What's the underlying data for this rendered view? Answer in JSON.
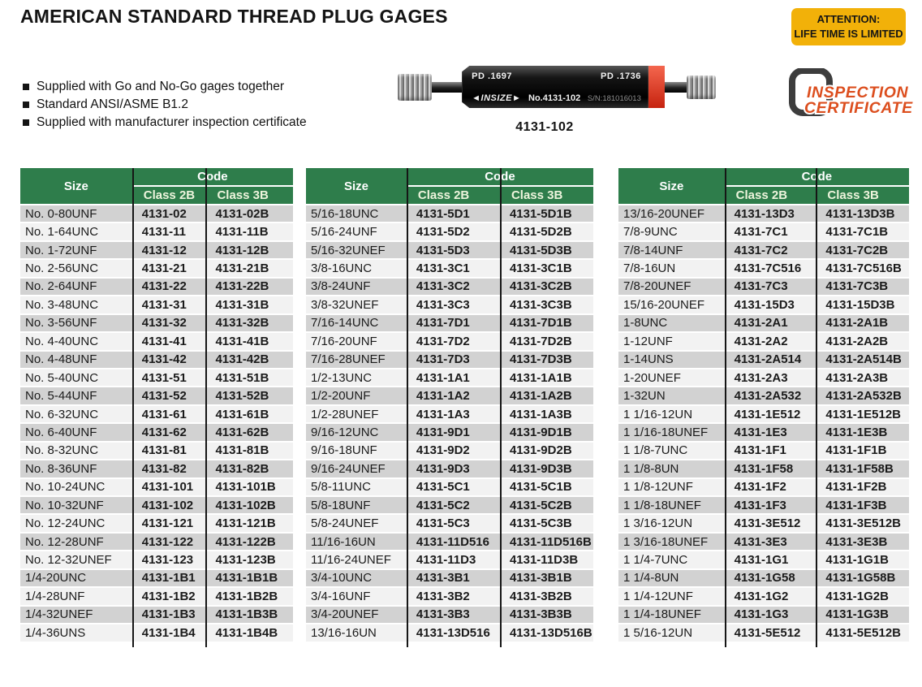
{
  "header": {
    "title": "AMERICAN STANDARD THREAD PLUG GAGES",
    "attention_line1": "ATTENTION:",
    "attention_line2": "LIFE TIME IS LIMITED"
  },
  "features": [
    "Supplied with Go and No-Go gages together",
    "Standard ANSI/ASME B1.2",
    "Supplied with manufacturer inspection certificate"
  ],
  "product": {
    "pd_left": "PD .1697",
    "pd_right": "PD .1736",
    "brand": "◄INSIZE►",
    "model_no": "No.4131-102",
    "serial": "S/N:181016013",
    "caption": "4131-102"
  },
  "certificate": {
    "line1": "INSPECTION",
    "line2": "CERTIFICATE"
  },
  "table_header": {
    "size": "Size",
    "code": "Code",
    "class_2b": "Class 2B",
    "class_3b": "Class 3B"
  },
  "tables": [
    {
      "rows": [
        {
          "size": "No. 0-80UNF",
          "class_2b": "4131-02",
          "class_3b": "4131-02B"
        },
        {
          "size": "No. 1-64UNC",
          "class_2b": "4131-11",
          "class_3b": "4131-11B"
        },
        {
          "size": "No. 1-72UNF",
          "class_2b": "4131-12",
          "class_3b": "4131-12B"
        },
        {
          "size": "No. 2-56UNC",
          "class_2b": "4131-21",
          "class_3b": "4131-21B"
        },
        {
          "size": "No. 2-64UNF",
          "class_2b": "4131-22",
          "class_3b": "4131-22B"
        },
        {
          "size": "No. 3-48UNC",
          "class_2b": "4131-31",
          "class_3b": "4131-31B"
        },
        {
          "size": "No. 3-56UNF",
          "class_2b": "4131-32",
          "class_3b": "4131-32B"
        },
        {
          "size": "No. 4-40UNC",
          "class_2b": "4131-41",
          "class_3b": "4131-41B"
        },
        {
          "size": "No. 4-48UNF",
          "class_2b": "4131-42",
          "class_3b": "4131-42B"
        },
        {
          "size": "No. 5-40UNC",
          "class_2b": "4131-51",
          "class_3b": "4131-51B"
        },
        {
          "size": "No. 5-44UNF",
          "class_2b": "4131-52",
          "class_3b": "4131-52B"
        },
        {
          "size": "No. 6-32UNC",
          "class_2b": "4131-61",
          "class_3b": "4131-61B"
        },
        {
          "size": "No. 6-40UNF",
          "class_2b": "4131-62",
          "class_3b": "4131-62B"
        },
        {
          "size": "No. 8-32UNC",
          "class_2b": "4131-81",
          "class_3b": "4131-81B"
        },
        {
          "size": "No. 8-36UNF",
          "class_2b": "4131-82",
          "class_3b": "4131-82B"
        },
        {
          "size": "No. 10-24UNC",
          "class_2b": "4131-101",
          "class_3b": "4131-101B"
        },
        {
          "size": "No. 10-32UNF",
          "class_2b": "4131-102",
          "class_3b": "4131-102B"
        },
        {
          "size": "No. 12-24UNC",
          "class_2b": "4131-121",
          "class_3b": "4131-121B"
        },
        {
          "size": "No. 12-28UNF",
          "class_2b": "4131-122",
          "class_3b": "4131-122B"
        },
        {
          "size": "No. 12-32UNEF",
          "class_2b": "4131-123",
          "class_3b": "4131-123B"
        },
        {
          "size": "1/4-20UNC",
          "class_2b": "4131-1B1",
          "class_3b": "4131-1B1B"
        },
        {
          "size": "1/4-28UNF",
          "class_2b": "4131-1B2",
          "class_3b": "4131-1B2B"
        },
        {
          "size": "1/4-32UNEF",
          "class_2b": "4131-1B3",
          "class_3b": "4131-1B3B"
        },
        {
          "size": "1/4-36UNS",
          "class_2b": "4131-1B4",
          "class_3b": "4131-1B4B"
        }
      ]
    },
    {
      "rows": [
        {
          "size": "5/16-18UNC",
          "class_2b": "4131-5D1",
          "class_3b": "4131-5D1B"
        },
        {
          "size": "5/16-24UNF",
          "class_2b": "4131-5D2",
          "class_3b": "4131-5D2B"
        },
        {
          "size": "5/16-32UNEF",
          "class_2b": "4131-5D3",
          "class_3b": "4131-5D3B"
        },
        {
          "size": "3/8-16UNC",
          "class_2b": "4131-3C1",
          "class_3b": "4131-3C1B"
        },
        {
          "size": "3/8-24UNF",
          "class_2b": "4131-3C2",
          "class_3b": "4131-3C2B"
        },
        {
          "size": "3/8-32UNEF",
          "class_2b": "4131-3C3",
          "class_3b": "4131-3C3B"
        },
        {
          "size": "7/16-14UNC",
          "class_2b": "4131-7D1",
          "class_3b": "4131-7D1B"
        },
        {
          "size": "7/16-20UNF",
          "class_2b": "4131-7D2",
          "class_3b": "4131-7D2B"
        },
        {
          "size": "7/16-28UNEF",
          "class_2b": "4131-7D3",
          "class_3b": "4131-7D3B"
        },
        {
          "size": "1/2-13UNC",
          "class_2b": "4131-1A1",
          "class_3b": "4131-1A1B"
        },
        {
          "size": "1/2-20UNF",
          "class_2b": "4131-1A2",
          "class_3b": "4131-1A2B"
        },
        {
          "size": "1/2-28UNEF",
          "class_2b": "4131-1A3",
          "class_3b": "4131-1A3B"
        },
        {
          "size": "9/16-12UNC",
          "class_2b": "4131-9D1",
          "class_3b": "4131-9D1B"
        },
        {
          "size": "9/16-18UNF",
          "class_2b": "4131-9D2",
          "class_3b": "4131-9D2B"
        },
        {
          "size": "9/16-24UNEF",
          "class_2b": "4131-9D3",
          "class_3b": "4131-9D3B"
        },
        {
          "size": "5/8-11UNC",
          "class_2b": "4131-5C1",
          "class_3b": "4131-5C1B"
        },
        {
          "size": "5/8-18UNF",
          "class_2b": "4131-5C2",
          "class_3b": "4131-5C2B"
        },
        {
          "size": "5/8-24UNEF",
          "class_2b": "4131-5C3",
          "class_3b": "4131-5C3B"
        },
        {
          "size": "11/16-16UN",
          "class_2b": "4131-11D516",
          "class_3b": "4131-11D516B"
        },
        {
          "size": "11/16-24UNEF",
          "class_2b": "4131-11D3",
          "class_3b": "4131-11D3B"
        },
        {
          "size": "3/4-10UNC",
          "class_2b": "4131-3B1",
          "class_3b": "4131-3B1B"
        },
        {
          "size": "3/4-16UNF",
          "class_2b": "4131-3B2",
          "class_3b": "4131-3B2B"
        },
        {
          "size": "3/4-20UNEF",
          "class_2b": "4131-3B3",
          "class_3b": "4131-3B3B"
        },
        {
          "size": "13/16-16UN",
          "class_2b": "4131-13D516",
          "class_3b": "4131-13D516B"
        }
      ]
    },
    {
      "rows": [
        {
          "size": "13/16-20UNEF",
          "class_2b": "4131-13D3",
          "class_3b": "4131-13D3B"
        },
        {
          "size": "7/8-9UNC",
          "class_2b": "4131-7C1",
          "class_3b": "4131-7C1B"
        },
        {
          "size": "7/8-14UNF",
          "class_2b": "4131-7C2",
          "class_3b": "4131-7C2B"
        },
        {
          "size": "7/8-16UN",
          "class_2b": "4131-7C516",
          "class_3b": "4131-7C516B"
        },
        {
          "size": "7/8-20UNEF",
          "class_2b": "4131-7C3",
          "class_3b": "4131-7C3B"
        },
        {
          "size": "15/16-20UNEF",
          "class_2b": "4131-15D3",
          "class_3b": "4131-15D3B"
        },
        {
          "size": "1-8UNC",
          "class_2b": "4131-2A1",
          "class_3b": "4131-2A1B"
        },
        {
          "size": "1-12UNF",
          "class_2b": "4131-2A2",
          "class_3b": "4131-2A2B"
        },
        {
          "size": "1-14UNS",
          "class_2b": "4131-2A514",
          "class_3b": "4131-2A514B"
        },
        {
          "size": "1-20UNEF",
          "class_2b": "4131-2A3",
          "class_3b": "4131-2A3B"
        },
        {
          "size": "1-32UN",
          "class_2b": "4131-2A532",
          "class_3b": "4131-2A532B"
        },
        {
          "size": "1 1/16-12UN",
          "class_2b": "4131-1E512",
          "class_3b": "4131-1E512B"
        },
        {
          "size": "1 1/16-18UNEF",
          "class_2b": "4131-1E3",
          "class_3b": "4131-1E3B"
        },
        {
          "size": "1 1/8-7UNC",
          "class_2b": "4131-1F1",
          "class_3b": "4131-1F1B"
        },
        {
          "size": "1 1/8-8UN",
          "class_2b": "4131-1F58",
          "class_3b": "4131-1F58B"
        },
        {
          "size": "1 1/8-12UNF",
          "class_2b": "4131-1F2",
          "class_3b": "4131-1F2B"
        },
        {
          "size": "1 1/8-18UNEF",
          "class_2b": "4131-1F3",
          "class_3b": "4131-1F3B"
        },
        {
          "size": "1 3/16-12UN",
          "class_2b": "4131-3E512",
          "class_3b": "4131-3E512B"
        },
        {
          "size": "1 3/16-18UNEF",
          "class_2b": "4131-3E3",
          "class_3b": "4131-3E3B"
        },
        {
          "size": "1 1/4-7UNC",
          "class_2b": "4131-1G1",
          "class_3b": "4131-1G1B"
        },
        {
          "size": "1 1/4-8UN",
          "class_2b": "4131-1G58",
          "class_3b": "4131-1G58B"
        },
        {
          "size": "1 1/4-12UNF",
          "class_2b": "4131-1G2",
          "class_3b": "4131-1G2B"
        },
        {
          "size": "1 1/4-18UNEF",
          "class_2b": "4131-1G3",
          "class_3b": "4131-1G3B"
        },
        {
          "size": "1 5/16-12UN",
          "class_2b": "4131-5E512",
          "class_3b": "4131-5E512B"
        }
      ]
    }
  ],
  "colors": {
    "header_green": "#2e7d4b",
    "row_gray": "#d2d2d2",
    "row_light": "#f2f2f2",
    "attention_yellow": "#f2b109",
    "certificate_red": "#dc4e1e",
    "gage_band_red": "#e23a24"
  }
}
